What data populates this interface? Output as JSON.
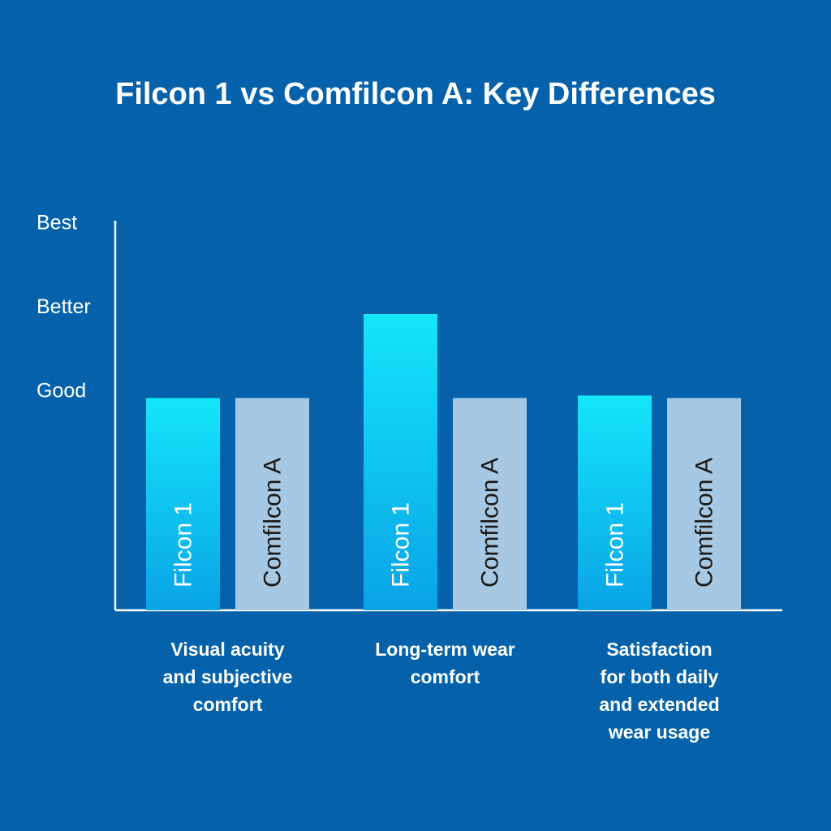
{
  "chart_data": {
    "type": "bar",
    "title": "Filcon 1 vs Comfilcon A: Key Differences",
    "y_scale_labels": [
      "Good",
      "Better",
      "Best"
    ],
    "ylim": [
      0,
      3
    ],
    "categories": [
      [
        "Visual acuity",
        "and subjective",
        "comfort"
      ],
      [
        "Long-term wear",
        "comfort"
      ],
      [
        "Satisfaction",
        "for both daily",
        "and extended",
        "wear usage"
      ]
    ],
    "series": [
      {
        "name": "Filcon 1",
        "values": [
          1.0,
          2.0,
          1.03
        ],
        "color": "#12D9F6"
      },
      {
        "name": "Comfilcon A",
        "values": [
          1.0,
          1.0,
          1.0
        ],
        "color": "#A6C8E2"
      }
    ],
    "grid": false,
    "legend": "none"
  }
}
